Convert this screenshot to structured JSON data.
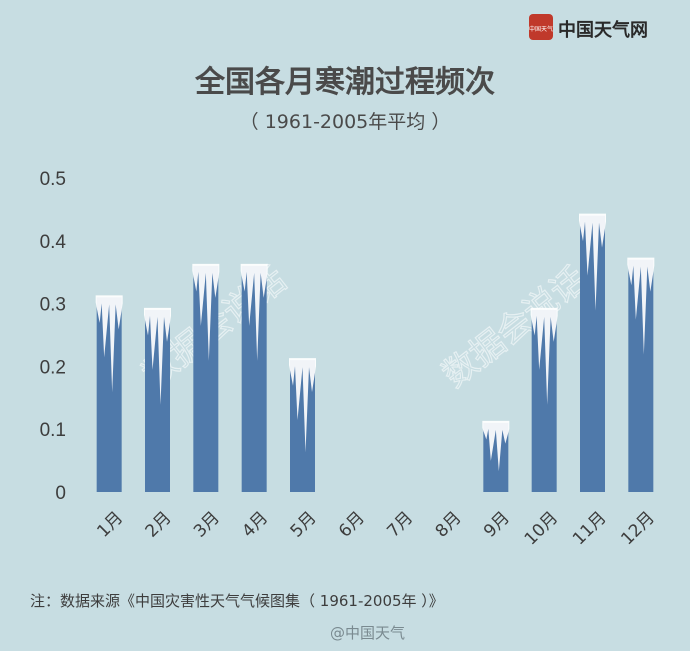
{
  "brand": {
    "name": "中国天气网",
    "logo_text": "中国天气"
  },
  "title": "全国各月寒潮过程频次",
  "subtitle": "（ 1961-2005年平均 ）",
  "watermark": "数据会说话",
  "note": "注：数据来源《中国灾害性天气气候图集（ 1961-2005年 ）》",
  "weibo": "@中国天气",
  "colors": {
    "background": "#c7dde2",
    "bar": "#4f79aa",
    "ice": "#ffffff",
    "logo": "#c0392b"
  },
  "chart_data": {
    "type": "bar",
    "categories": [
      "1月",
      "2月",
      "3月",
      "4月",
      "5月",
      "6月",
      "7月",
      "8月",
      "9月",
      "10月",
      "11月",
      "12月"
    ],
    "values": [
      0.31,
      0.29,
      0.36,
      0.36,
      0.21,
      0,
      0,
      0,
      0.11,
      0.29,
      0.44,
      0.37
    ],
    "yticks": [
      "0",
      "0.1",
      "0.2",
      "0.3",
      "0.4",
      "0.5"
    ],
    "ylim": [
      0,
      0.5
    ],
    "grid": false,
    "legend": "none"
  }
}
